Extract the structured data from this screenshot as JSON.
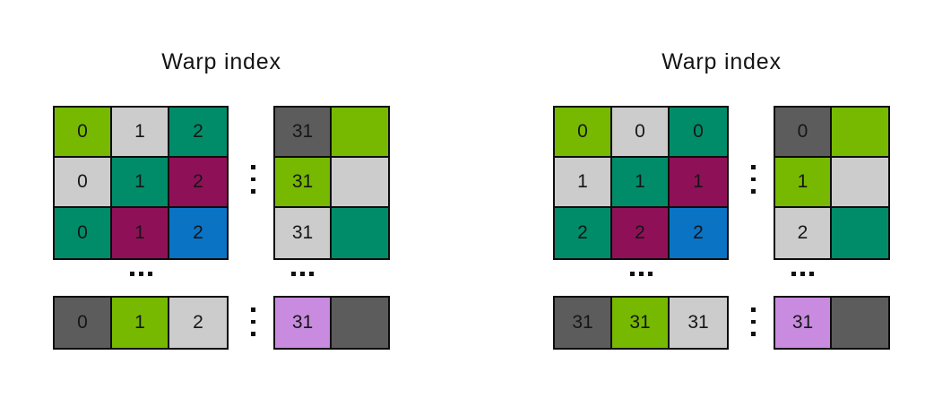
{
  "figure": {
    "background": "#ffffff"
  },
  "colors": {
    "lime": "#76b900",
    "light_gray": "#cccccc",
    "teal": "#008c69",
    "maroon": "#8e1158",
    "blue": "#0a73c4",
    "dark_gray": "#5c5c5c",
    "purple": "#c98be0",
    "border": "#0d0d0d",
    "text": "#161616"
  },
  "icons": {
    "ellipsis_vertical": "⋮",
    "ellipsis_horizontal": "…"
  },
  "panels": [
    {
      "title": "Warp index",
      "grid_cells": [
        {
          "label": "0",
          "color": "lime"
        },
        {
          "label": "1",
          "color": "light_gray"
        },
        {
          "label": "2",
          "color": "teal"
        },
        {
          "label": "0",
          "color": "light_gray"
        },
        {
          "label": "1",
          "color": "teal"
        },
        {
          "label": "2",
          "color": "maroon"
        },
        {
          "label": "0",
          "color": "teal"
        },
        {
          "label": "1",
          "color": "maroon"
        },
        {
          "label": "2",
          "color": "blue"
        }
      ],
      "strip_cells": [
        {
          "label": "31",
          "color": "dark_gray"
        },
        {
          "label": "",
          "color": "lime"
        },
        {
          "label": "31",
          "color": "lime"
        },
        {
          "label": "",
          "color": "light_gray"
        },
        {
          "label": "31",
          "color": "light_gray"
        },
        {
          "label": "",
          "color": "teal"
        }
      ],
      "bottom_row_cells": [
        {
          "label": "0",
          "color": "dark_gray"
        },
        {
          "label": "1",
          "color": "lime"
        },
        {
          "label": "2",
          "color": "light_gray"
        }
      ],
      "bottom_strip_cells": [
        {
          "label": "31",
          "color": "purple"
        },
        {
          "label": "",
          "color": "dark_gray"
        }
      ]
    },
    {
      "title": "Warp index",
      "grid_cells": [
        {
          "label": "0",
          "color": "lime"
        },
        {
          "label": "0",
          "color": "light_gray"
        },
        {
          "label": "0",
          "color": "teal"
        },
        {
          "label": "1",
          "color": "light_gray"
        },
        {
          "label": "1",
          "color": "teal"
        },
        {
          "label": "1",
          "color": "maroon"
        },
        {
          "label": "2",
          "color": "teal"
        },
        {
          "label": "2",
          "color": "maroon"
        },
        {
          "label": "2",
          "color": "blue"
        }
      ],
      "strip_cells": [
        {
          "label": "0",
          "color": "dark_gray"
        },
        {
          "label": "",
          "color": "lime"
        },
        {
          "label": "1",
          "color": "lime"
        },
        {
          "label": "",
          "color": "light_gray"
        },
        {
          "label": "2",
          "color": "light_gray"
        },
        {
          "label": "",
          "color": "teal"
        }
      ],
      "bottom_row_cells": [
        {
          "label": "31",
          "color": "dark_gray"
        },
        {
          "label": "31",
          "color": "lime"
        },
        {
          "label": "31",
          "color": "light_gray"
        }
      ],
      "bottom_strip_cells": [
        {
          "label": "31",
          "color": "purple"
        },
        {
          "label": "",
          "color": "dark_gray"
        }
      ]
    }
  ]
}
